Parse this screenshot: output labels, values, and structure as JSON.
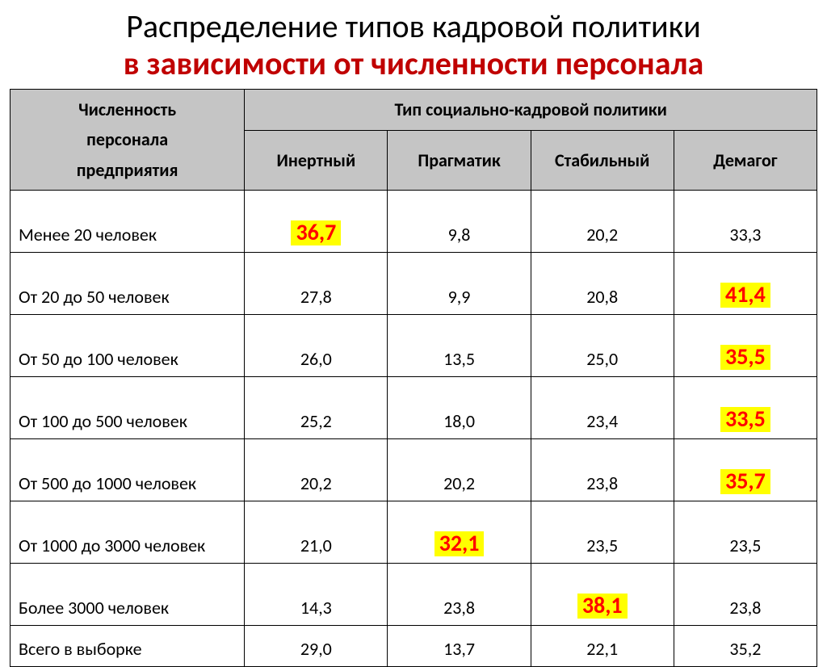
{
  "title": {
    "line1": "Распределение типов кадровой политики",
    "line2": "в зависимости от численности персонала"
  },
  "table": {
    "row_header_l1": "Численность",
    "row_header_l2": "персонала",
    "row_header_l3": "предприятия",
    "super_header": "Тип социально-кадровой политики",
    "columns": [
      "Инертный",
      "Прагматик",
      "Стабильный",
      "Демагог"
    ],
    "header_bg": "#c5c5c5",
    "highlight_bg": "#ffff00",
    "highlight_color": "#ff0000",
    "rows": [
      {
        "label": "Менее 20 человек",
        "cells": [
          {
            "v": "36,7",
            "hl": true
          },
          {
            "v": "9,8",
            "hl": false
          },
          {
            "v": "20,2",
            "hl": false
          },
          {
            "v": "33,3",
            "hl": false
          }
        ]
      },
      {
        "label": "От 20 до 50 человек",
        "cells": [
          {
            "v": "27,8",
            "hl": false
          },
          {
            "v": "9,9",
            "hl": false
          },
          {
            "v": "20,8",
            "hl": false
          },
          {
            "v": "41,4",
            "hl": true
          }
        ]
      },
      {
        "label": "От 50 до 100 человек",
        "cells": [
          {
            "v": "26,0",
            "hl": false
          },
          {
            "v": "13,5",
            "hl": false
          },
          {
            "v": "25,0",
            "hl": false
          },
          {
            "v": "35,5",
            "hl": true
          }
        ]
      },
      {
        "label": "От 100 до 500 человек",
        "cells": [
          {
            "v": "25,2",
            "hl": false
          },
          {
            "v": "18,0",
            "hl": false
          },
          {
            "v": "23,4",
            "hl": false
          },
          {
            "v": "33,5",
            "hl": true
          }
        ]
      },
      {
        "label": "От 500 до 1000 человек",
        "cells": [
          {
            "v": "20,2",
            "hl": false
          },
          {
            "v": "20,2",
            "hl": false
          },
          {
            "v": "23,8",
            "hl": false
          },
          {
            "v": "35,7",
            "hl": true
          }
        ]
      },
      {
        "label": "От 1000 до 3000 человек",
        "cells": [
          {
            "v": "21,0",
            "hl": false
          },
          {
            "v": "32,1",
            "hl": true
          },
          {
            "v": "23,5",
            "hl": false
          },
          {
            "v": "23,5",
            "hl": false
          }
        ]
      },
      {
        "label": "Более 3000 человек",
        "cells": [
          {
            "v": "14,3",
            "hl": false
          },
          {
            "v": "23,8",
            "hl": false
          },
          {
            "v": "38,1",
            "hl": true
          },
          {
            "v": "23,8",
            "hl": false
          }
        ]
      },
      {
        "label": "Всего в выборке",
        "short": true,
        "cells": [
          {
            "v": "29,0",
            "hl": false
          },
          {
            "v": "13,7",
            "hl": false
          },
          {
            "v": "22,1",
            "hl": false
          },
          {
            "v": "35,2",
            "hl": false
          }
        ]
      }
    ]
  }
}
